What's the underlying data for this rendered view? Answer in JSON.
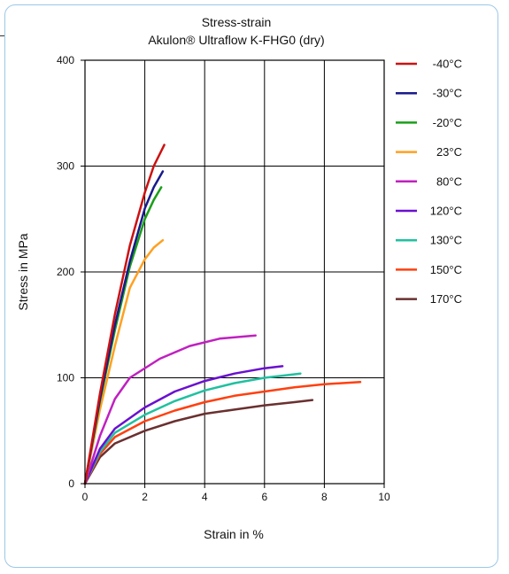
{
  "chart_data": {
    "type": "line",
    "title": "Stress-strain",
    "subtitle": "Akulon® Ultraflow K-FHG0 (dry)",
    "xlabel": "Strain in %",
    "ylabel": "Stress in MPa",
    "xlim": [
      0,
      10
    ],
    "ylim": [
      0,
      400
    ],
    "xticks": [
      "0",
      "2",
      "4",
      "6",
      "8",
      "10"
    ],
    "yticks": [
      "0",
      "100",
      "200",
      "300",
      "400"
    ],
    "grid": true,
    "legend_position": "right",
    "series": [
      {
        "name": "-40°C",
        "color": "#cc1111",
        "points": [
          [
            0,
            0
          ],
          [
            0.5,
            85
          ],
          [
            1.0,
            160
          ],
          [
            1.5,
            225
          ],
          [
            2.0,
            275
          ],
          [
            2.3,
            300
          ],
          [
            2.65,
            320
          ]
        ]
      },
      {
        "name": "-30°C",
        "color": "#1a1a8c",
        "points": [
          [
            0,
            0
          ],
          [
            0.5,
            80
          ],
          [
            1.0,
            150
          ],
          [
            1.5,
            210
          ],
          [
            2.0,
            260
          ],
          [
            2.3,
            280
          ],
          [
            2.6,
            295
          ]
        ]
      },
      {
        "name": "-20°C",
        "color": "#1a9e1a",
        "points": [
          [
            0,
            0
          ],
          [
            0.5,
            78
          ],
          [
            1.0,
            145
          ],
          [
            1.5,
            205
          ],
          [
            2.0,
            250
          ],
          [
            2.3,
            268
          ],
          [
            2.55,
            280
          ]
        ]
      },
      {
        "name": "23°C",
        "color": "#ffa020",
        "points": [
          [
            0,
            0
          ],
          [
            0.5,
            70
          ],
          [
            1.0,
            130
          ],
          [
            1.5,
            185
          ],
          [
            2.0,
            212
          ],
          [
            2.3,
            223
          ],
          [
            2.6,
            230
          ]
        ]
      },
      {
        "name": "80°C",
        "color": "#c020c0",
        "points": [
          [
            0,
            0
          ],
          [
            0.5,
            45
          ],
          [
            1.0,
            80
          ],
          [
            1.5,
            100
          ],
          [
            2.5,
            118
          ],
          [
            3.5,
            130
          ],
          [
            4.5,
            137
          ],
          [
            5.7,
            140
          ]
        ]
      },
      {
        "name": "120°C",
        "color": "#6a10d0",
        "points": [
          [
            0,
            0
          ],
          [
            0.5,
            33
          ],
          [
            1.0,
            52
          ],
          [
            2.0,
            72
          ],
          [
            3.0,
            87
          ],
          [
            4.0,
            97
          ],
          [
            5.0,
            104
          ],
          [
            6.0,
            109
          ],
          [
            6.6,
            111
          ]
        ]
      },
      {
        "name": "130°C",
        "color": "#20c0a0",
        "points": [
          [
            0,
            0
          ],
          [
            0.5,
            30
          ],
          [
            1.0,
            48
          ],
          [
            2.0,
            65
          ],
          [
            3.0,
            78
          ],
          [
            4.0,
            88
          ],
          [
            5.0,
            95
          ],
          [
            6.0,
            100
          ],
          [
            7.2,
            104
          ]
        ]
      },
      {
        "name": "150°C",
        "color": "#ff4010",
        "points": [
          [
            0,
            0
          ],
          [
            0.5,
            28
          ],
          [
            1.0,
            44
          ],
          [
            2.0,
            59
          ],
          [
            3.0,
            69
          ],
          [
            4.0,
            77
          ],
          [
            5.0,
            83
          ],
          [
            6.0,
            87
          ],
          [
            7.0,
            91
          ],
          [
            8.0,
            94
          ],
          [
            9.2,
            96
          ]
        ]
      },
      {
        "name": "170°C",
        "color": "#6a3030",
        "points": [
          [
            0,
            0
          ],
          [
            0.5,
            25
          ],
          [
            1.0,
            38
          ],
          [
            2.0,
            50
          ],
          [
            3.0,
            59
          ],
          [
            4.0,
            66
          ],
          [
            5.0,
            70
          ],
          [
            6.0,
            74
          ],
          [
            7.0,
            77
          ],
          [
            7.6,
            79
          ]
        ]
      }
    ]
  }
}
